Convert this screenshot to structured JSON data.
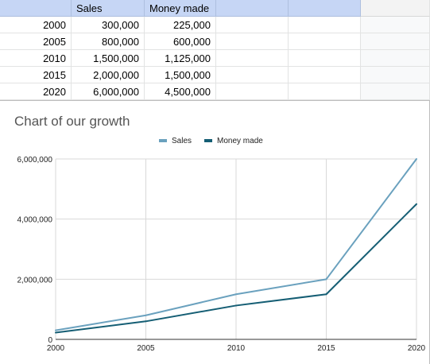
{
  "sheet": {
    "header": [
      "",
      "Sales",
      "Money made",
      "",
      "",
      ""
    ],
    "rows": [
      [
        "2000",
        "300,000",
        "225,000"
      ],
      [
        "2005",
        "800,000",
        "600,000"
      ],
      [
        "2010",
        "1,500,000",
        "1,125,000"
      ],
      [
        "2015",
        "2,000,000",
        "1,500,000"
      ],
      [
        "2020",
        "6,000,000",
        "4,500,000"
      ]
    ]
  },
  "chart_data": {
    "type": "line",
    "title": "Chart of our growth",
    "x": [
      2000,
      2005,
      2010,
      2015,
      2020
    ],
    "x_tick_labels": [
      "2000",
      "2005",
      "2010",
      "2015",
      "2020"
    ],
    "y_tick_labels": [
      "0",
      "2,000,000",
      "4,000,000",
      "6,000,000"
    ],
    "ylim": [
      0,
      6000000
    ],
    "grid": true,
    "legend_position": "top",
    "series": [
      {
        "name": "Sales",
        "color": "#6aa1be",
        "values": [
          300000,
          800000,
          1500000,
          2000000,
          6000000
        ]
      },
      {
        "name": "Money made",
        "color": "#155e74",
        "values": [
          225000,
          600000,
          1125000,
          1500000,
          4500000
        ]
      }
    ]
  }
}
